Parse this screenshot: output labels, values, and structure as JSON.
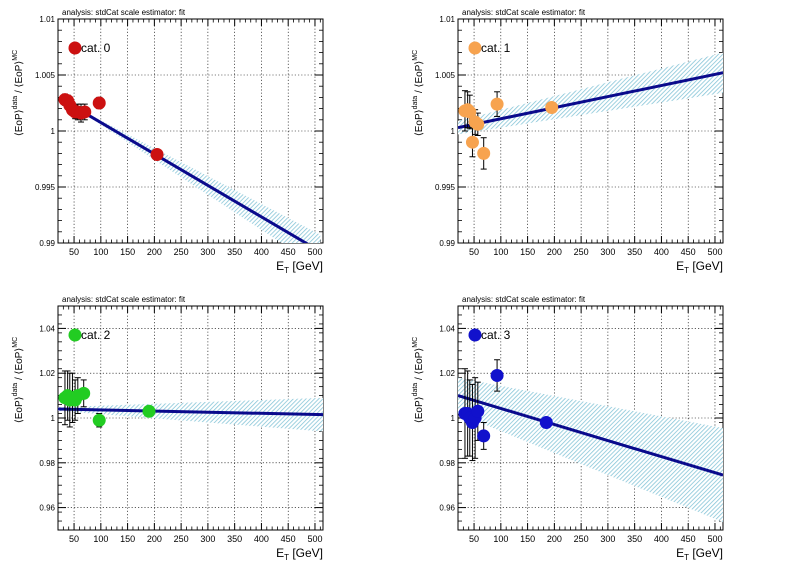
{
  "x_axis_label": "E",
  "x_axis_label_sub": "T",
  "x_axis_unit": "[GeV]",
  "y_axis_label": "⟨EoP⟩",
  "y_axis_label_sup_data": "data",
  "y_axis_label_mid": " / ⟨EoP⟩",
  "y_axis_label_sup_mc": "MC",
  "header_text": "analysis: stdCat   scale estimator: fit",
  "colors": {
    "line": "#0a0a8c",
    "band": "#86c5d8",
    "grid": "#000000"
  },
  "chart_data": [
    {
      "type": "scatter",
      "legend": "cat. 0",
      "color": "#cc1111",
      "xlim": [
        20,
        515
      ],
      "ylim": [
        0.99,
        1.01
      ],
      "xticks": [
        50,
        100,
        150,
        200,
        250,
        300,
        350,
        400,
        450,
        500
      ],
      "xtick_labels": [
        "50",
        "100",
        "150",
        "200",
        "250",
        "300",
        "350",
        "400",
        "450",
        "500"
      ],
      "yticks": [
        0.99,
        0.995,
        1.0,
        1.005,
        1.01
      ],
      "ytick_labels": [
        "0.99",
        "0.995",
        "1",
        "1.005",
        "1.01"
      ],
      "points": [
        {
          "x": 33,
          "y": 1.0028,
          "err": 0.0005
        },
        {
          "x": 38,
          "y": 1.0027,
          "err": 0.0005
        },
        {
          "x": 42,
          "y": 1.0023,
          "err": 0.0005
        },
        {
          "x": 47,
          "y": 1.0019,
          "err": 0.0005
        },
        {
          "x": 52,
          "y": 1.0017,
          "err": 0.0006
        },
        {
          "x": 57,
          "y": 1.0017,
          "err": 0.0007
        },
        {
          "x": 63,
          "y": 1.0016,
          "err": 0.0008
        },
        {
          "x": 70,
          "y": 1.0017,
          "err": 0.0007
        },
        {
          "x": 97,
          "y": 1.0025,
          "err": 0.0005
        },
        {
          "x": 205,
          "y": 0.9979,
          "err": 0.0004
        }
      ],
      "fit": {
        "x0": 70,
        "y0": 1.0016,
        "x1": 490,
        "y1": 0.9898
      },
      "band": {
        "x0": 70,
        "hw0": 0.0001,
        "x1": 510,
        "hw1": 0.0015
      }
    },
    {
      "type": "scatter",
      "legend": "cat. 1",
      "color": "#f7a34f",
      "xlim": [
        20,
        515
      ],
      "ylim": [
        0.99,
        1.01
      ],
      "xticks": [
        50,
        100,
        150,
        200,
        250,
        300,
        350,
        400,
        450,
        500
      ],
      "xtick_labels": [
        "50",
        "100",
        "150",
        "200",
        "250",
        "300",
        "350",
        "400",
        "450",
        "500"
      ],
      "yticks": [
        0.99,
        0.995,
        1.0,
        1.005,
        1.01
      ],
      "ytick_labels": [
        "0.99",
        "0.995",
        "1",
        "1.005",
        "1.01"
      ],
      "points": [
        {
          "x": 33,
          "y": 1.0018,
          "err": 0.0018
        },
        {
          "x": 38,
          "y": 1.0019,
          "err": 0.0016
        },
        {
          "x": 42,
          "y": 1.0017,
          "err": 0.0015
        },
        {
          "x": 47,
          "y": 0.999,
          "err": 0.0013
        },
        {
          "x": 52,
          "y": 1.0008,
          "err": 0.0011
        },
        {
          "x": 57,
          "y": 1.0006,
          "err": 0.001
        },
        {
          "x": 68,
          "y": 0.998,
          "err": 0.0014
        },
        {
          "x": 93,
          "y": 1.0024,
          "err": 0.0011
        },
        {
          "x": 195,
          "y": 1.0021,
          "err": 0.0004
        }
      ],
      "fit": {
        "x0": 20,
        "y0": 1.0003,
        "x1": 515,
        "y1": 1.0052
      },
      "band": {
        "x0": 20,
        "hw0": 0.0006,
        "x1": 515,
        "hw1": 0.0018
      }
    },
    {
      "type": "scatter",
      "legend": "cat. 2",
      "color": "#22cc22",
      "xlim": [
        20,
        515
      ],
      "ylim": [
        0.95,
        1.05
      ],
      "xticks": [
        50,
        100,
        150,
        200,
        250,
        300,
        350,
        400,
        450,
        500
      ],
      "xtick_labels": [
        "50",
        "100",
        "150",
        "200",
        "250",
        "300",
        "350",
        "400",
        "450",
        "500"
      ],
      "yticks": [
        0.96,
        0.98,
        1.0,
        1.02,
        1.04
      ],
      "ytick_labels": [
        "0.96",
        "0.98",
        "1",
        "1.02",
        "1.04"
      ],
      "points": [
        {
          "x": 33,
          "y": 1.009,
          "err": 0.012
        },
        {
          "x": 38,
          "y": 1.01,
          "err": 0.011
        },
        {
          "x": 42,
          "y": 1.008,
          "err": 0.012
        },
        {
          "x": 47,
          "y": 1.009,
          "err": 0.011
        },
        {
          "x": 52,
          "y": 1.008,
          "err": 0.009
        },
        {
          "x": 57,
          "y": 1.01,
          "err": 0.008
        },
        {
          "x": 68,
          "y": 1.011,
          "err": 0.006
        },
        {
          "x": 97,
          "y": 0.999,
          "err": 0.003
        },
        {
          "x": 190,
          "y": 1.003,
          "err": 0.002
        }
      ],
      "fit": {
        "x0": 20,
        "y0": 1.004,
        "x1": 515,
        "y1": 1.0015
      },
      "band": {
        "x0": 20,
        "hw0": 0.0008,
        "x1": 515,
        "hw1": 0.0075
      }
    },
    {
      "type": "scatter",
      "legend": "cat. 3",
      "color": "#1111cc",
      "xlim": [
        20,
        515
      ],
      "ylim": [
        0.95,
        1.05
      ],
      "xticks": [
        50,
        100,
        150,
        200,
        250,
        300,
        350,
        400,
        450,
        500
      ],
      "xtick_labels": [
        "50",
        "100",
        "150",
        "200",
        "250",
        "300",
        "350",
        "400",
        "450",
        "500"
      ],
      "yticks": [
        0.96,
        0.98,
        1.0,
        1.02,
        1.04
      ],
      "ytick_labels": [
        "0.96",
        "0.98",
        "1",
        "1.02",
        "1.04"
      ],
      "points": [
        {
          "x": 33,
          "y": 1.002,
          "err": 0.02
        },
        {
          "x": 38,
          "y": 1.002,
          "err": 0.019
        },
        {
          "x": 42,
          "y": 1.0,
          "err": 0.017
        },
        {
          "x": 47,
          "y": 0.998,
          "err": 0.017
        },
        {
          "x": 52,
          "y": 1.0,
          "err": 0.018
        },
        {
          "x": 57,
          "y": 1.003,
          "err": 0.013
        },
        {
          "x": 68,
          "y": 0.992,
          "err": 0.006
        },
        {
          "x": 93,
          "y": 1.019,
          "err": 0.007
        },
        {
          "x": 185,
          "y": 0.998,
          "err": 0.002
        }
      ],
      "fit": {
        "x0": 20,
        "y0": 1.01,
        "x1": 515,
        "y1": 0.9745
      },
      "band": {
        "x0": 20,
        "hw0": 0.008,
        "x1": 515,
        "hw1": 0.021
      }
    }
  ]
}
